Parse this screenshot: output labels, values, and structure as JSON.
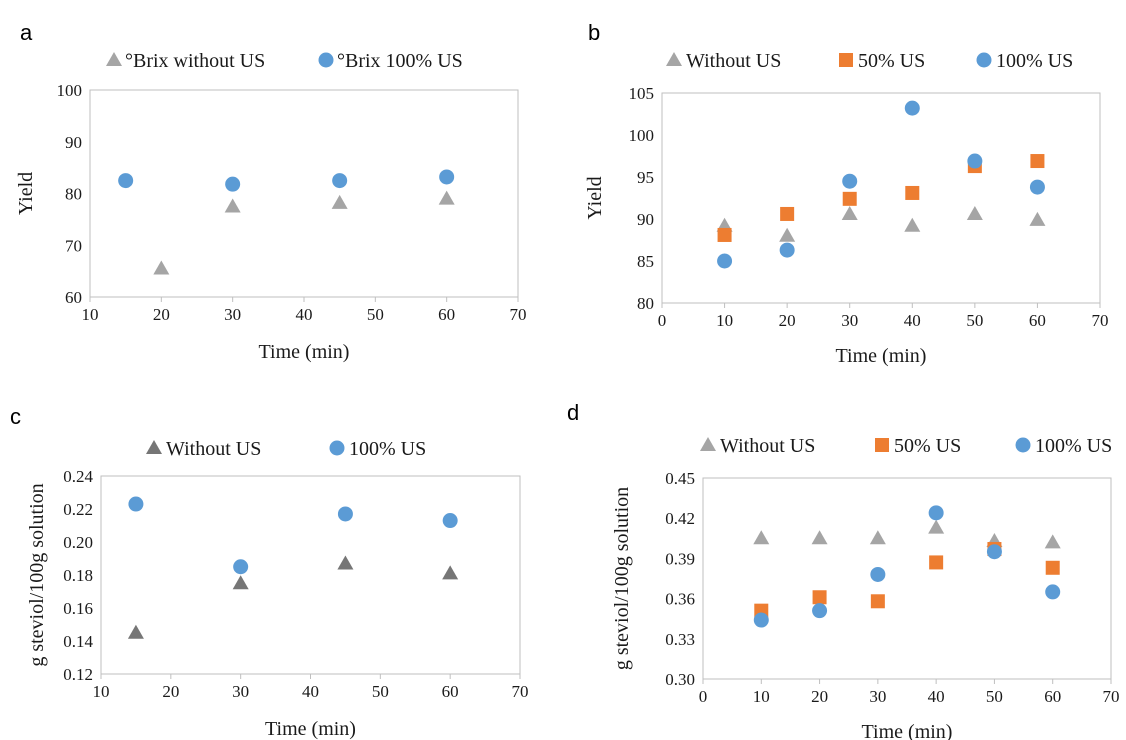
{
  "colors": {
    "gray": "#a5a5a5",
    "dark_gray": "#767676",
    "orange": "#ed7d31",
    "blue": "#5b9bd5",
    "frame": "#bfbfbf"
  },
  "chart_data": [
    {
      "panel": "a",
      "type": "scatter",
      "xlabel": "Time (min)",
      "ylabel": "Yield",
      "xlim": [
        10,
        70
      ],
      "ylim": [
        60,
        100
      ],
      "xticks": [
        10,
        20,
        30,
        40,
        50,
        60,
        70
      ],
      "yticks": [
        60,
        70,
        80,
        90,
        100
      ],
      "legend_position": "top",
      "series": [
        {
          "name": "°Brix without US",
          "marker": "triangle",
          "color": "#a5a5a5",
          "x": [
            20,
            30,
            45,
            60
          ],
          "y": [
            65.5,
            77.5,
            78.2,
            79.0
          ]
        },
        {
          "name": "°Brix 100% US",
          "marker": "circle",
          "color": "#5b9bd5",
          "x": [
            15,
            30,
            45,
            60
          ],
          "y": [
            82.5,
            81.8,
            82.5,
            83.2
          ]
        }
      ]
    },
    {
      "panel": "b",
      "type": "scatter",
      "xlabel": "Time (min)",
      "ylabel": "Yield",
      "xlim": [
        0,
        70
      ],
      "ylim": [
        80,
        105
      ],
      "xticks": [
        0,
        10,
        20,
        30,
        40,
        50,
        60,
        70
      ],
      "yticks": [
        80,
        85,
        90,
        95,
        100,
        105
      ],
      "legend_position": "top",
      "series": [
        {
          "name": "Without US",
          "marker": "triangle",
          "color": "#a5a5a5",
          "x": [
            10,
            20,
            30,
            40,
            50,
            60
          ],
          "y": [
            89.2,
            88.0,
            90.6,
            89.2,
            90.6,
            89.9
          ]
        },
        {
          "name": "50% US",
          "marker": "square",
          "color": "#ed7d31",
          "x": [
            10,
            20,
            30,
            40,
            50,
            60
          ],
          "y": [
            88.1,
            90.6,
            92.4,
            93.1,
            96.3,
            96.9
          ]
        },
        {
          "name": "100% US",
          "marker": "circle",
          "color": "#5b9bd5",
          "x": [
            10,
            20,
            30,
            40,
            50,
            60
          ],
          "y": [
            85.0,
            86.3,
            94.5,
            103.2,
            96.9,
            93.8
          ]
        }
      ]
    },
    {
      "panel": "c",
      "type": "scatter",
      "xlabel": "Time (min)",
      "ylabel": "g steviol/100g solution",
      "xlim": [
        10,
        70
      ],
      "ylim": [
        0.12,
        0.24
      ],
      "xticks": [
        10,
        20,
        30,
        40,
        50,
        60,
        70
      ],
      "yticks": [
        0.12,
        0.14,
        0.16,
        0.18,
        0.2,
        0.22,
        0.24
      ],
      "ytick_labels": [
        "0.12",
        "0.14",
        "0.16",
        "0.18",
        "0.20",
        "0.22",
        "0.24"
      ],
      "legend_position": "top",
      "series": [
        {
          "name": "Without US",
          "marker": "triangle",
          "color": "#767676",
          "x": [
            15,
            30,
            45,
            60
          ],
          "y": [
            0.145,
            0.175,
            0.187,
            0.181
          ]
        },
        {
          "name": "100% US",
          "marker": "circle",
          "color": "#5b9bd5",
          "x": [
            15,
            30,
            45,
            60
          ],
          "y": [
            0.223,
            0.185,
            0.217,
            0.213
          ]
        }
      ]
    },
    {
      "panel": "d",
      "type": "scatter",
      "xlabel": "Time (min)",
      "ylabel": "g steviol/100g solution",
      "xlim": [
        0,
        70
      ],
      "ylim": [
        0.3,
        0.45
      ],
      "xticks": [
        0,
        10,
        20,
        30,
        40,
        50,
        60,
        70
      ],
      "yticks": [
        0.3,
        0.33,
        0.36,
        0.39,
        0.42,
        0.45
      ],
      "ytick_labels": [
        "0.30",
        "0.33",
        "0.36",
        "0.39",
        "0.42",
        "0.45"
      ],
      "legend_position": "top",
      "series": [
        {
          "name": "Without US",
          "marker": "triangle",
          "color": "#a5a5a5",
          "x": [
            10,
            20,
            30,
            40,
            50,
            60
          ],
          "y": [
            0.405,
            0.405,
            0.405,
            0.413,
            0.403,
            0.402
          ]
        },
        {
          "name": "50% US",
          "marker": "square",
          "color": "#ed7d31",
          "x": [
            10,
            20,
            30,
            40,
            50,
            60
          ],
          "y": [
            0.351,
            0.361,
            0.358,
            0.387,
            0.397,
            0.383
          ]
        },
        {
          "name": "100% US",
          "marker": "circle",
          "color": "#5b9bd5",
          "x": [
            10,
            20,
            30,
            40,
            50,
            60
          ],
          "y": [
            0.344,
            0.351,
            0.378,
            0.424,
            0.395,
            0.365
          ]
        }
      ]
    }
  ]
}
